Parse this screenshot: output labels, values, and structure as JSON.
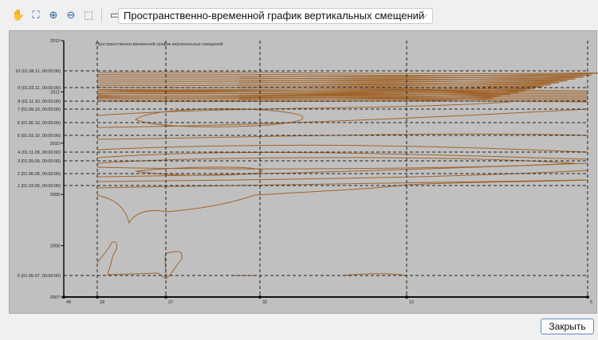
{
  "toolbar": {
    "icons": [
      "hand-pan-icon",
      "zoom-region-icon",
      "zoom-in-icon",
      "zoom-out-icon",
      "zoom-reset-icon",
      "window-icon"
    ]
  },
  "dropdown": {
    "selected": "Пространственно-временной график вертикальных смещений"
  },
  "close_label": "Закрыть",
  "chart_data": {
    "type": "contour",
    "title": "Пространственно-временной график вертикальных смещений",
    "y_ticks": [
      "2012",
      "2011",
      "2010",
      "2009",
      "2008",
      "2007"
    ],
    "ylim": [
      2007,
      2012
    ],
    "x_ticks": [
      "49",
      "18",
      "27",
      "32",
      "12",
      "5"
    ],
    "reference_lines": [
      "0 (01.06.07, 00:00:00)",
      "1 (01.03.09, 00:00:00)",
      "2 (01.06.09, 00:00:00)",
      "3 (01.09.09, 00:00:00)",
      "4 (01.11.09, 00:00:00)",
      "5 (01.03.10, 00:00:00)",
      "6 (01.06.10, 00:00:00)",
      "7 (01.09.10, 00:00:00)",
      "8 (01.11.10, 00:00:00)",
      "9 (01.02.11, 00:00:00)",
      "10 (01.08.11, 00:00:00)"
    ],
    "contour_color": "#a0642a",
    "background": "#c0c0c0"
  }
}
